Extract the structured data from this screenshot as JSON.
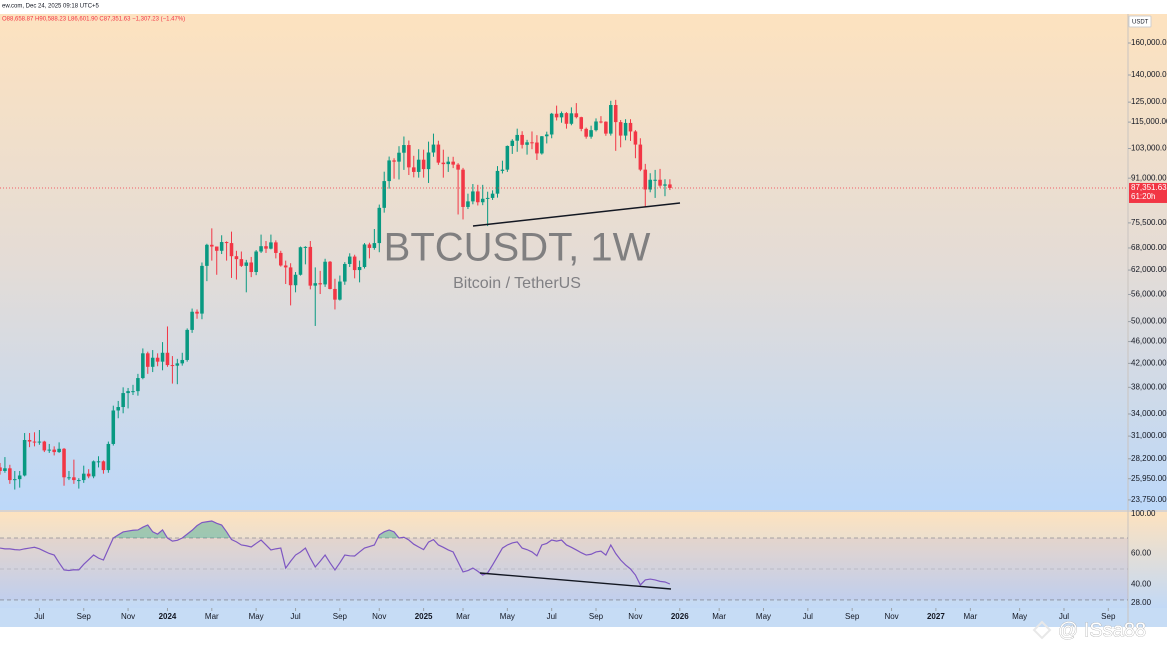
{
  "chart_data": [
    {
      "type": "candlestick",
      "title": "BTCUSDT, 1W",
      "subtitle": "Bitcoin / TetherUS",
      "header": "ew.com, Dec 24, 2025 09:18 UTC+5",
      "ohlc_legend": "O88,658.87 H90,588.23 L86,601.90 C87,351.63 −1,307.23 (−1.47%)",
      "currency": "USDT",
      "last_price": {
        "value": 87351.63,
        "label": "87,351.63"
      },
      "countdown": "61:20h",
      "open": [
        27200,
        26800,
        27100,
        25800,
        25900,
        26300,
        30500,
        30300,
        30200,
        30300,
        29200,
        29300,
        29000,
        29400,
        26100,
        26100,
        25800,
        25800,
        26500,
        26200,
        27900,
        27900,
        26900,
        30000,
        34500,
        35000,
        37100,
        37400,
        37400,
        39500,
        43800,
        41400,
        43000,
        42300,
        43900,
        41700,
        41600,
        42000,
        42600,
        48300,
        52100,
        51700,
        63100,
        68900,
        68400,
        67200,
        69700,
        69400,
        65700,
        64900,
        63100,
        64000,
        61500,
        67000,
        68500,
        67800,
        69600,
        66600,
        63200,
        62700,
        58200,
        60800,
        68200,
        68300,
        58100,
        58700,
        58400,
        64200,
        57300,
        54800,
        59100,
        63600,
        65600,
        62000,
        62800,
        69000,
        68000,
        69400,
        80400,
        89900,
        98000,
        97500,
        101200,
        104500,
        95200,
        93400,
        98300,
        94500,
        101300,
        104700,
        97100,
        96500,
        97500,
        96300,
        94300,
        80700,
        82600,
        86100,
        82300,
        83500,
        83800,
        85300,
        93800,
        94300,
        104100,
        106400,
        109000,
        104600,
        105700,
        105600,
        100900,
        108400,
        109200,
        119100,
        117300,
        119400,
        114200,
        119300,
        117400,
        111800,
        108200,
        111200,
        115300,
        115200,
        109600,
        123500,
        115000,
        108700,
        114600,
        110600,
        104700,
        94300,
        86800,
        90400,
        90400,
        88200,
        88658.87
      ],
      "high": [
        27700,
        28400,
        27500,
        26800,
        26800,
        31400,
        31400,
        31500,
        31800,
        30400,
        30000,
        29700,
        30200,
        29500,
        26800,
        28100,
        26000,
        27400,
        27000,
        28000,
        28500,
        28000,
        30300,
        35200,
        35900,
        38000,
        37900,
        38400,
        40200,
        44700,
        44100,
        44400,
        43800,
        45900,
        49000,
        43300,
        42800,
        43900,
        48600,
        52800,
        52600,
        64000,
        69200,
        73800,
        68400,
        71700,
        69900,
        72800,
        67200,
        67000,
        64700,
        65500,
        67400,
        71900,
        70000,
        71900,
        70200,
        67200,
        64500,
        63800,
        61500,
        68400,
        68500,
        70000,
        62700,
        61800,
        65000,
        64400,
        59800,
        60600,
        64100,
        66500,
        66100,
        64500,
        69400,
        69500,
        73600,
        81500,
        93500,
        99600,
        98900,
        104000,
        108300,
        106500,
        99900,
        102700,
        102500,
        106000,
        109600,
        106400,
        102500,
        99500,
        99500,
        96900,
        95000,
        85300,
        88800,
        88500,
        88500,
        86000,
        86500,
        95700,
        97900,
        104300,
        107100,
        111900,
        110700,
        106800,
        110600,
        108900,
        108500,
        110500,
        119500,
        123200,
        120200,
        119900,
        122300,
        124500,
        117600,
        112400,
        113300,
        116800,
        117900,
        115400,
        125700,
        126200,
        116000,
        116400,
        116400,
        111200,
        107500,
        96600,
        92900,
        94200,
        94600,
        90600,
        90588.23
      ],
      "low": [
        26400,
        26600,
        25400,
        24800,
        25000,
        26200,
        29600,
        29700,
        29900,
        29000,
        28900,
        28600,
        28900,
        25200,
        25800,
        25400,
        24900,
        25500,
        26000,
        26000,
        27200,
        26500,
        26600,
        29800,
        33400,
        34100,
        34800,
        36800,
        36700,
        39300,
        40200,
        40500,
        41500,
        40800,
        41400,
        38600,
        38500,
        41600,
        42300,
        47700,
        50600,
        50500,
        59200,
        64500,
        60800,
        66300,
        64500,
        60000,
        59600,
        62800,
        56500,
        60200,
        60700,
        66600,
        66600,
        67600,
        65100,
        62900,
        58500,
        53500,
        56500,
        60600,
        63500,
        57200,
        49100,
        56100,
        57800,
        57200,
        52600,
        54600,
        58300,
        62800,
        59900,
        58900,
        62400,
        65100,
        67500,
        66800,
        78800,
        87100,
        90800,
        90500,
        94200,
        92200,
        91300,
        91200,
        91200,
        89200,
        99500,
        96200,
        91200,
        93400,
        94900,
        78200,
        76600,
        80000,
        81600,
        81200,
        81300,
        74500,
        83100,
        83900,
        92800,
        93400,
        100700,
        101600,
        103000,
        100400,
        102700,
        98200,
        100400,
        105200,
        107500,
        115800,
        114700,
        111900,
        113500,
        116800,
        110700,
        107300,
        107300,
        110600,
        114400,
        108600,
        108700,
        102000,
        103500,
        106600,
        106300,
        98900,
        93700,
        80600,
        85800,
        83800,
        87500,
        84400,
        86601.9
      ],
      "close": [
        26800,
        27100,
        25800,
        25900,
        26300,
        30500,
        30300,
        30200,
        30300,
        29200,
        29300,
        29000,
        29400,
        26100,
        26100,
        25800,
        25800,
        26500,
        26200,
        27900,
        27900,
        26900,
        30000,
        34500,
        35000,
        37100,
        37400,
        37400,
        39500,
        43800,
        41400,
        43000,
        42300,
        43900,
        41700,
        41600,
        42000,
        42600,
        48300,
        52100,
        51700,
        63100,
        68900,
        68400,
        67200,
        69700,
        69400,
        65700,
        64900,
        63100,
        64000,
        61500,
        67000,
        68500,
        67800,
        69600,
        66600,
        63200,
        62700,
        58200,
        60800,
        68200,
        68300,
        58100,
        58700,
        58400,
        64200,
        57300,
        54800,
        59100,
        63600,
        65600,
        62000,
        62800,
        69000,
        68000,
        69400,
        80400,
        89900,
        98000,
        97500,
        101200,
        104500,
        95200,
        93400,
        98300,
        94500,
        101300,
        104700,
        97100,
        96500,
        97500,
        96300,
        94300,
        80700,
        82600,
        86100,
        82300,
        83500,
        83800,
        85300,
        93800,
        94300,
        104100,
        106400,
        109000,
        104600,
        105700,
        105600,
        100900,
        108400,
        109200,
        119100,
        117300,
        119400,
        114200,
        119300,
        117400,
        111800,
        108200,
        111200,
        115300,
        115200,
        109600,
        123500,
        115000,
        108700,
        114600,
        110600,
        104700,
        94300,
        86800,
        90400,
        90400,
        88200,
        88658.87,
        87351.63
      ],
      "up_color": "#089981",
      "down_color": "#f23645",
      "log_scale": true,
      "xlim": [
        0,
        229
      ],
      "ylim": [
        22770,
        180600
      ],
      "yticks": [
        {
          "value": 160000,
          "label": "160,000.00"
        },
        {
          "value": 140000,
          "label": "140,000.00"
        },
        {
          "value": 125000,
          "label": "125,000.00"
        },
        {
          "value": 115000,
          "label": "115,000.00"
        },
        {
          "value": 103000,
          "label": "103,000.00"
        },
        {
          "value": 91000,
          "label": "91,000.00"
        },
        {
          "value": 75500,
          "label": "75,500.00"
        },
        {
          "value": 68000,
          "label": "68,000.00"
        },
        {
          "value": 62000,
          "label": "62,000.00"
        },
        {
          "value": 56000,
          "label": "56,000.00"
        },
        {
          "value": 50000,
          "label": "50,000.00"
        },
        {
          "value": 46000,
          "label": "46,000.00"
        },
        {
          "value": 42000,
          "label": "42,000.00"
        },
        {
          "value": 38000,
          "label": "38,000.00"
        },
        {
          "value": 34000,
          "label": "34,000.00"
        },
        {
          "value": 31000,
          "label": "31,000.00"
        },
        {
          "value": 28200,
          "label": "28,200.00"
        },
        {
          "value": 25950,
          "label": "25,950.00"
        },
        {
          "value": 23750,
          "label": "23,750.00"
        }
      ]
    },
    {
      "type": "line",
      "values": [
        63.5,
        63,
        63,
        62.5,
        62.3,
        63,
        63.5,
        64,
        63,
        61.5,
        60,
        59,
        54,
        49.4,
        49,
        49.5,
        49.4,
        53,
        56,
        59,
        57,
        55.8,
        63,
        70,
        72,
        73.9,
        74.5,
        75,
        75.2,
        77,
        78.4,
        74,
        72.5,
        75.2,
        70,
        68,
        68.5,
        70,
        72.5,
        75,
        78,
        80,
        80.5,
        81,
        79.5,
        78.4,
        74,
        69,
        67.5,
        65.5,
        65,
        64.2,
        66.5,
        68.7,
        65.5,
        62.3,
        63,
        63.5,
        50.6,
        55,
        59,
        61,
        63.5,
        57,
        51.3,
        55,
        59,
        54,
        49.4,
        54,
        59,
        58.5,
        58.4,
        61,
        63.5,
        64.5,
        65.5,
        72,
        74,
        75.2,
        74,
        70,
        70.5,
        68.7,
        66,
        64.2,
        62.5,
        67.4,
        69,
        65.5,
        64,
        62.3,
        61,
        54.5,
        48.1,
        49,
        50.6,
        48.5,
        46.1,
        47.5,
        52.6,
        58,
        63.5,
        65.5,
        66.8,
        67.5,
        63.5,
        62.5,
        61,
        58.5,
        65.5,
        66.5,
        68.7,
        68,
        68.7,
        65.5,
        64,
        62.3,
        60.5,
        59,
        59.5,
        61,
        61.5,
        59,
        65.5,
        60,
        55.8,
        52.6,
        50,
        46.1,
        39.7,
        42.9,
        43.5,
        42.9,
        42,
        41.6,
        40.3
      ],
      "color": "#7e57c2",
      "overbought_color": "#089981",
      "levels": [
        70,
        50,
        30
      ],
      "xlim": [
        0,
        229
      ],
      "ylim": [
        24.8,
        86.8
      ],
      "yticks": [
        {
          "value": 100,
          "label": "100.00"
        },
        {
          "value": 60,
          "label": "60.00"
        },
        {
          "value": 40,
          "label": "40.00"
        },
        {
          "value": 28,
          "label": "28.00"
        }
      ],
      "xticks": [
        {
          "value": 8,
          "label": "Jul"
        },
        {
          "value": 17,
          "label": "Sep"
        },
        {
          "value": 26,
          "label": "Nov"
        },
        {
          "value": 34,
          "label": "2024"
        },
        {
          "value": 43,
          "label": "Mar"
        },
        {
          "value": 52,
          "label": "May"
        },
        {
          "value": 60,
          "label": "Jul"
        },
        {
          "value": 69,
          "label": "Sep"
        },
        {
          "value": 77,
          "label": "Nov"
        },
        {
          "value": 86,
          "label": "2025"
        },
        {
          "value": 94,
          "label": "Mar"
        },
        {
          "value": 103,
          "label": "May"
        },
        {
          "value": 112,
          "label": "Jul"
        },
        {
          "value": 121,
          "label": "Sep"
        },
        {
          "value": 129,
          "label": "Nov"
        },
        {
          "value": 138,
          "label": "2026"
        },
        {
          "value": 146,
          "label": "Mar"
        },
        {
          "value": 155,
          "label": "May"
        },
        {
          "value": 164,
          "label": "Jul"
        },
        {
          "value": 173,
          "label": "Sep"
        },
        {
          "value": 181,
          "label": "Nov"
        },
        {
          "value": 190,
          "label": "2027"
        },
        {
          "value": 197,
          "label": "Mar"
        },
        {
          "value": 207,
          "label": "May"
        },
        {
          "value": 216,
          "label": "Jul"
        },
        {
          "value": 225,
          "label": "Sep"
        }
      ]
    }
  ],
  "watermark": "@ ISsa88"
}
